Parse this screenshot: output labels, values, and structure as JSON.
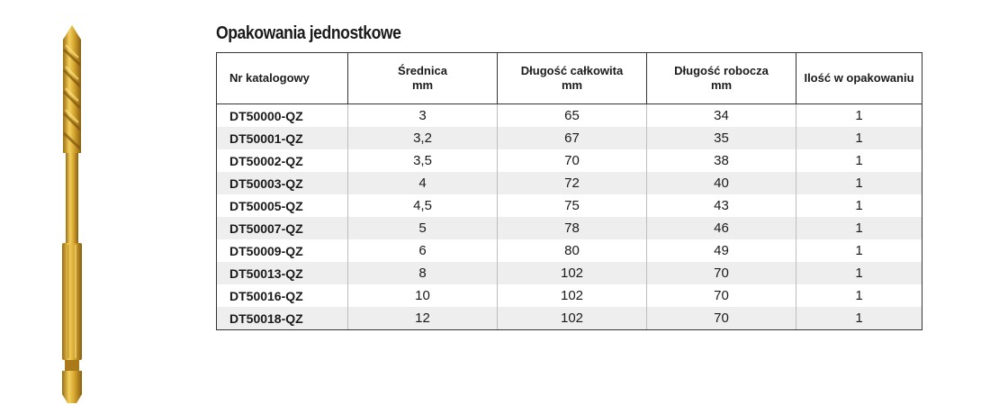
{
  "title": "Opakowania jednostkowe",
  "image": {
    "subject": "drill-bit-icon",
    "color": "#d4a62a"
  },
  "table": {
    "headers": [
      {
        "line1": "Nr katalogowy",
        "line2": ""
      },
      {
        "line1": "Średnica",
        "line2": "mm"
      },
      {
        "line1": "Długość całkowita",
        "line2": "mm"
      },
      {
        "line1": "Długość robocza",
        "line2": "mm"
      },
      {
        "line1": "Ilość w opakowaniu",
        "line2": ""
      }
    ],
    "rows": [
      [
        "DT50000-QZ",
        "3",
        "65",
        "34",
        "1"
      ],
      [
        "DT50001-QZ",
        "3,2",
        "67",
        "35",
        "1"
      ],
      [
        "DT50002-QZ",
        "3,5",
        "70",
        "38",
        "1"
      ],
      [
        "DT50003-QZ",
        "4",
        "72",
        "40",
        "1"
      ],
      [
        "DT50005-QZ",
        "4,5",
        "75",
        "43",
        "1"
      ],
      [
        "DT50007-QZ",
        "5",
        "78",
        "46",
        "1"
      ],
      [
        "DT50009-QZ",
        "6",
        "80",
        "49",
        "1"
      ],
      [
        "DT50013-QZ",
        "8",
        "102",
        "70",
        "1"
      ],
      [
        "DT50016-QZ",
        "10",
        "102",
        "70",
        "1"
      ],
      [
        "DT50018-QZ",
        "12",
        "102",
        "70",
        "1"
      ]
    ]
  }
}
